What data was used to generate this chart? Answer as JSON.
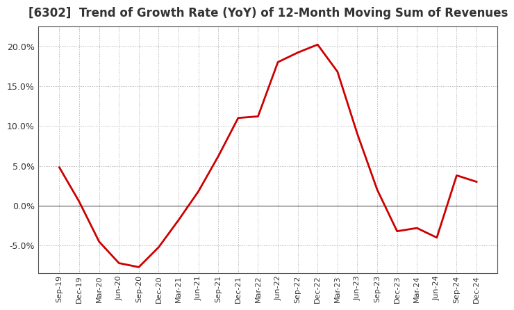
{
  "title": "[6302]  Trend of Growth Rate (YoY) of 12-Month Moving Sum of Revenues",
  "title_fontsize": 12,
  "line_color": "#cc0000",
  "background_color": "#ffffff",
  "grid_color": "#aaaaaa",
  "zero_line_color": "#555555",
  "ylim": [
    -0.085,
    0.225
  ],
  "yticks": [
    -0.05,
    0.0,
    0.05,
    0.1,
    0.15,
    0.2
  ],
  "x_labels": [
    "Sep-19",
    "Dec-19",
    "Mar-20",
    "Jun-20",
    "Sep-20",
    "Dec-20",
    "Mar-21",
    "Jun-21",
    "Sep-21",
    "Dec-21",
    "Mar-22",
    "Jun-22",
    "Sep-22",
    "Dec-22",
    "Mar-23",
    "Jun-23",
    "Sep-23",
    "Dec-23",
    "Mar-24",
    "Jun-24",
    "Sep-24",
    "Dec-24"
  ],
  "y_values": [
    0.048,
    0.005,
    -0.045,
    -0.072,
    -0.077,
    -0.052,
    -0.018,
    0.018,
    0.062,
    0.11,
    0.112,
    0.18,
    0.192,
    0.202,
    0.168,
    0.09,
    0.02,
    -0.032,
    -0.028,
    -0.04,
    0.038,
    0.03
  ]
}
